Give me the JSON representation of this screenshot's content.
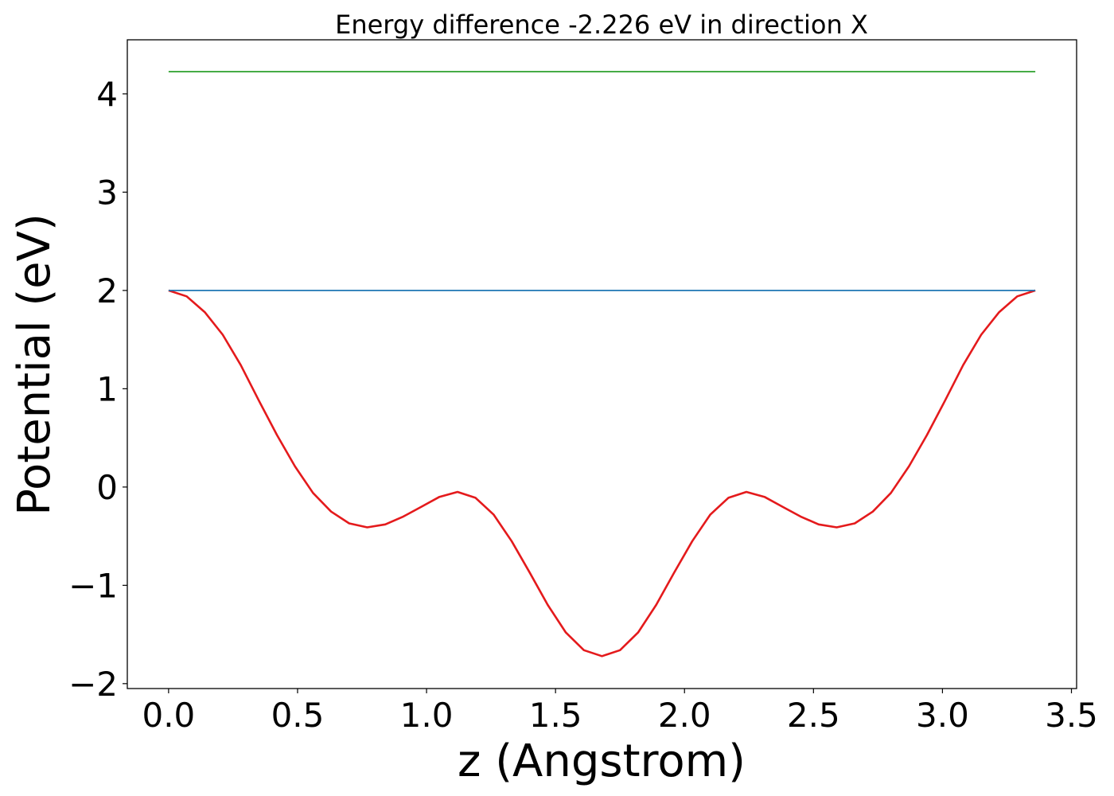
{
  "chart_data": {
    "type": "line",
    "title": "Energy difference -2.226 eV in direction X",
    "xlabel": "z (Angstrom)",
    "ylabel": "Potential (eV)",
    "xlim": [
      -0.16,
      3.52
    ],
    "ylim": [
      -2.05,
      4.55
    ],
    "xticks": [
      0.0,
      0.5,
      1.0,
      1.5,
      2.0,
      2.5,
      3.0,
      3.5
    ],
    "xtick_labels": [
      "0.0",
      "0.5",
      "1.0",
      "1.5",
      "2.0",
      "2.5",
      "3.0",
      "3.5"
    ],
    "yticks": [
      -2,
      -1,
      0,
      1,
      2,
      3,
      4
    ],
    "ytick_labels": [
      "−2",
      "−1",
      "0",
      "1",
      "2",
      "3",
      "4"
    ],
    "grid": false,
    "series": [
      {
        "color": "#e41a1c",
        "style": "line",
        "x": [
          0.0,
          0.07,
          0.14,
          0.21,
          0.28,
          0.35,
          0.42,
          0.49,
          0.56,
          0.63,
          0.7,
          0.77,
          0.84,
          0.91,
          0.98,
          1.05,
          1.12,
          1.19,
          1.26,
          1.33,
          1.4,
          1.47,
          1.54,
          1.61,
          1.68,
          1.75,
          1.82,
          1.89,
          1.96,
          2.03,
          2.1,
          2.17,
          2.24,
          2.31,
          2.38,
          2.45,
          2.52,
          2.59,
          2.66,
          2.73,
          2.8,
          2.87,
          2.94,
          3.01,
          3.08,
          3.15,
          3.22,
          3.29,
          3.36
        ],
        "y": [
          2.0,
          1.94,
          1.78,
          1.55,
          1.24,
          0.88,
          0.53,
          0.21,
          -0.06,
          -0.25,
          -0.37,
          -0.41,
          -0.38,
          -0.3,
          -0.2,
          -0.1,
          -0.05,
          -0.11,
          -0.28,
          -0.55,
          -0.87,
          -1.2,
          -1.48,
          -1.66,
          -1.72,
          -1.66,
          -1.48,
          -1.2,
          -0.87,
          -0.55,
          -0.28,
          -0.11,
          -0.05,
          -0.1,
          -0.2,
          -0.3,
          -0.38,
          -0.41,
          -0.37,
          -0.25,
          -0.06,
          0.21,
          0.53,
          0.88,
          1.24,
          1.55,
          1.78,
          1.94,
          2.0
        ]
      },
      {
        "color": "#1f77b4",
        "style": "line",
        "x": [
          0.0,
          3.36
        ],
        "y": [
          2.0,
          2.0
        ]
      },
      {
        "color": "#2ca02c",
        "style": "line",
        "x": [
          0.0,
          3.36
        ],
        "y": [
          4.226,
          4.226
        ]
      }
    ]
  }
}
